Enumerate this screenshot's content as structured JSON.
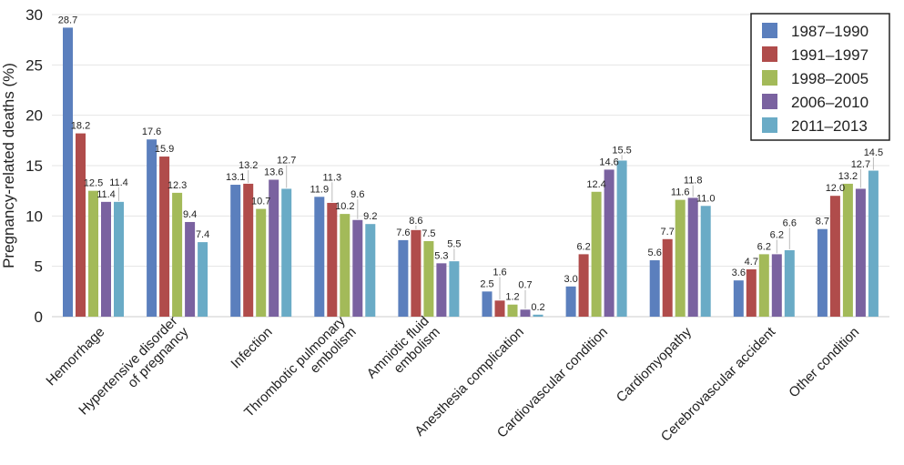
{
  "chart_data": {
    "type": "bar",
    "ylabel": "Pregnancy-related deaths (%)",
    "xlabel": "",
    "ylim": [
      0,
      30
    ],
    "yticks": [
      0,
      5,
      10,
      15,
      20,
      25,
      30
    ],
    "grid": true,
    "legend_position": "top-right",
    "categories": [
      "Hemorrhage",
      "Hypertensive disorder\nof pregnancy",
      "Infection",
      "Thrombotic pulmonary\nembolism",
      "Amniotic fluid\nembolism",
      "Anesthesia complication",
      "Cardiovascular condition",
      "Cardiomyopathy",
      "Cerebrovascular accident",
      "Other condition"
    ],
    "series": [
      {
        "name": "1987–1990",
        "color": "#5b7fbd",
        "values": [
          28.7,
          17.6,
          13.1,
          11.9,
          7.6,
          2.5,
          3.0,
          5.6,
          3.6,
          8.7
        ]
      },
      {
        "name": "1991–1997",
        "color": "#b04c4b",
        "values": [
          18.2,
          15.9,
          13.2,
          11.3,
          8.6,
          1.6,
          6.2,
          7.7,
          4.7,
          12.0
        ]
      },
      {
        "name": "1998–2005",
        "color": "#a3ba59",
        "values": [
          12.5,
          12.3,
          10.7,
          10.2,
          7.5,
          1.2,
          12.4,
          11.6,
          6.2,
          13.2
        ]
      },
      {
        "name": "2006–2010",
        "color": "#7a62a0",
        "values": [
          11.4,
          9.4,
          13.6,
          9.6,
          5.3,
          0.7,
          14.6,
          11.8,
          6.2,
          12.7
        ]
      },
      {
        "name": "2011–2013",
        "color": "#6aabc6",
        "values": [
          11.4,
          7.4,
          12.7,
          9.2,
          5.5,
          0.2,
          15.5,
          11.0,
          6.6,
          14.5
        ]
      }
    ]
  }
}
